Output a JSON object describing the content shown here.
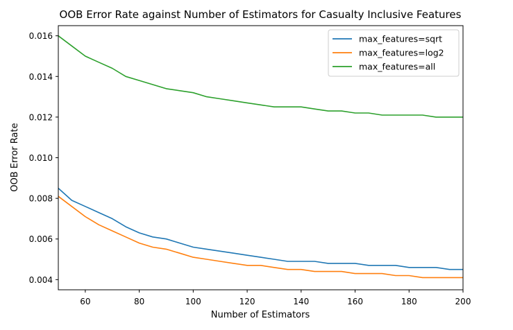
{
  "chart_data": {
    "type": "line",
    "title": "OOB Error Rate against Number of Estimators for Casualty Inclusive Features",
    "xlabel": "Number of Estimators",
    "ylabel": "OOB Error Rate",
    "xlim": [
      50,
      200
    ],
    "ylim": [
      0.0035,
      0.0165
    ],
    "xticks": [
      60,
      80,
      100,
      120,
      140,
      160,
      180,
      200
    ],
    "yticks": [
      0.004,
      0.006,
      0.008,
      0.01,
      0.012,
      0.014,
      0.016
    ],
    "xtick_labels": [
      "60",
      "80",
      "100",
      "120",
      "140",
      "160",
      "180",
      "200"
    ],
    "ytick_labels": [
      "0.004",
      "0.006",
      "0.008",
      "0.010",
      "0.012",
      "0.014",
      "0.016"
    ],
    "legend_position": "top-right",
    "grid": false,
    "x": [
      50,
      55,
      60,
      65,
      70,
      75,
      80,
      85,
      90,
      95,
      100,
      105,
      110,
      115,
      120,
      125,
      130,
      135,
      140,
      145,
      150,
      155,
      160,
      165,
      170,
      175,
      180,
      185,
      190,
      195,
      200
    ],
    "series": [
      {
        "name": "max_features=sqrt",
        "color": "#1f77b4",
        "values": [
          0.0085,
          0.0079,
          0.0076,
          0.0073,
          0.007,
          0.0066,
          0.0063,
          0.0061,
          0.006,
          0.0058,
          0.0056,
          0.0055,
          0.0054,
          0.0053,
          0.0052,
          0.0051,
          0.005,
          0.0049,
          0.0049,
          0.0049,
          0.0048,
          0.0048,
          0.0048,
          0.0047,
          0.0047,
          0.0047,
          0.0046,
          0.0046,
          0.0046,
          0.0045,
          0.0045
        ]
      },
      {
        "name": "max_features=log2",
        "color": "#ff7f0e",
        "values": [
          0.0081,
          0.0076,
          0.0071,
          0.0067,
          0.0064,
          0.0061,
          0.0058,
          0.0056,
          0.0055,
          0.0053,
          0.0051,
          0.005,
          0.0049,
          0.0048,
          0.0047,
          0.0047,
          0.0046,
          0.0045,
          0.0045,
          0.0044,
          0.0044,
          0.0044,
          0.0043,
          0.0043,
          0.0043,
          0.0042,
          0.0042,
          0.0041,
          0.0041,
          0.0041,
          0.0041
        ]
      },
      {
        "name": "max_features=all",
        "color": "#2ca02c",
        "values": [
          0.016,
          0.0155,
          0.015,
          0.0147,
          0.0144,
          0.014,
          0.0138,
          0.0136,
          0.0134,
          0.0133,
          0.0132,
          0.013,
          0.0129,
          0.0128,
          0.0127,
          0.0126,
          0.0125,
          0.0125,
          0.0125,
          0.0124,
          0.0123,
          0.0123,
          0.0122,
          0.0122,
          0.0121,
          0.0121,
          0.0121,
          0.0121,
          0.012,
          0.012,
          0.012
        ]
      }
    ]
  }
}
